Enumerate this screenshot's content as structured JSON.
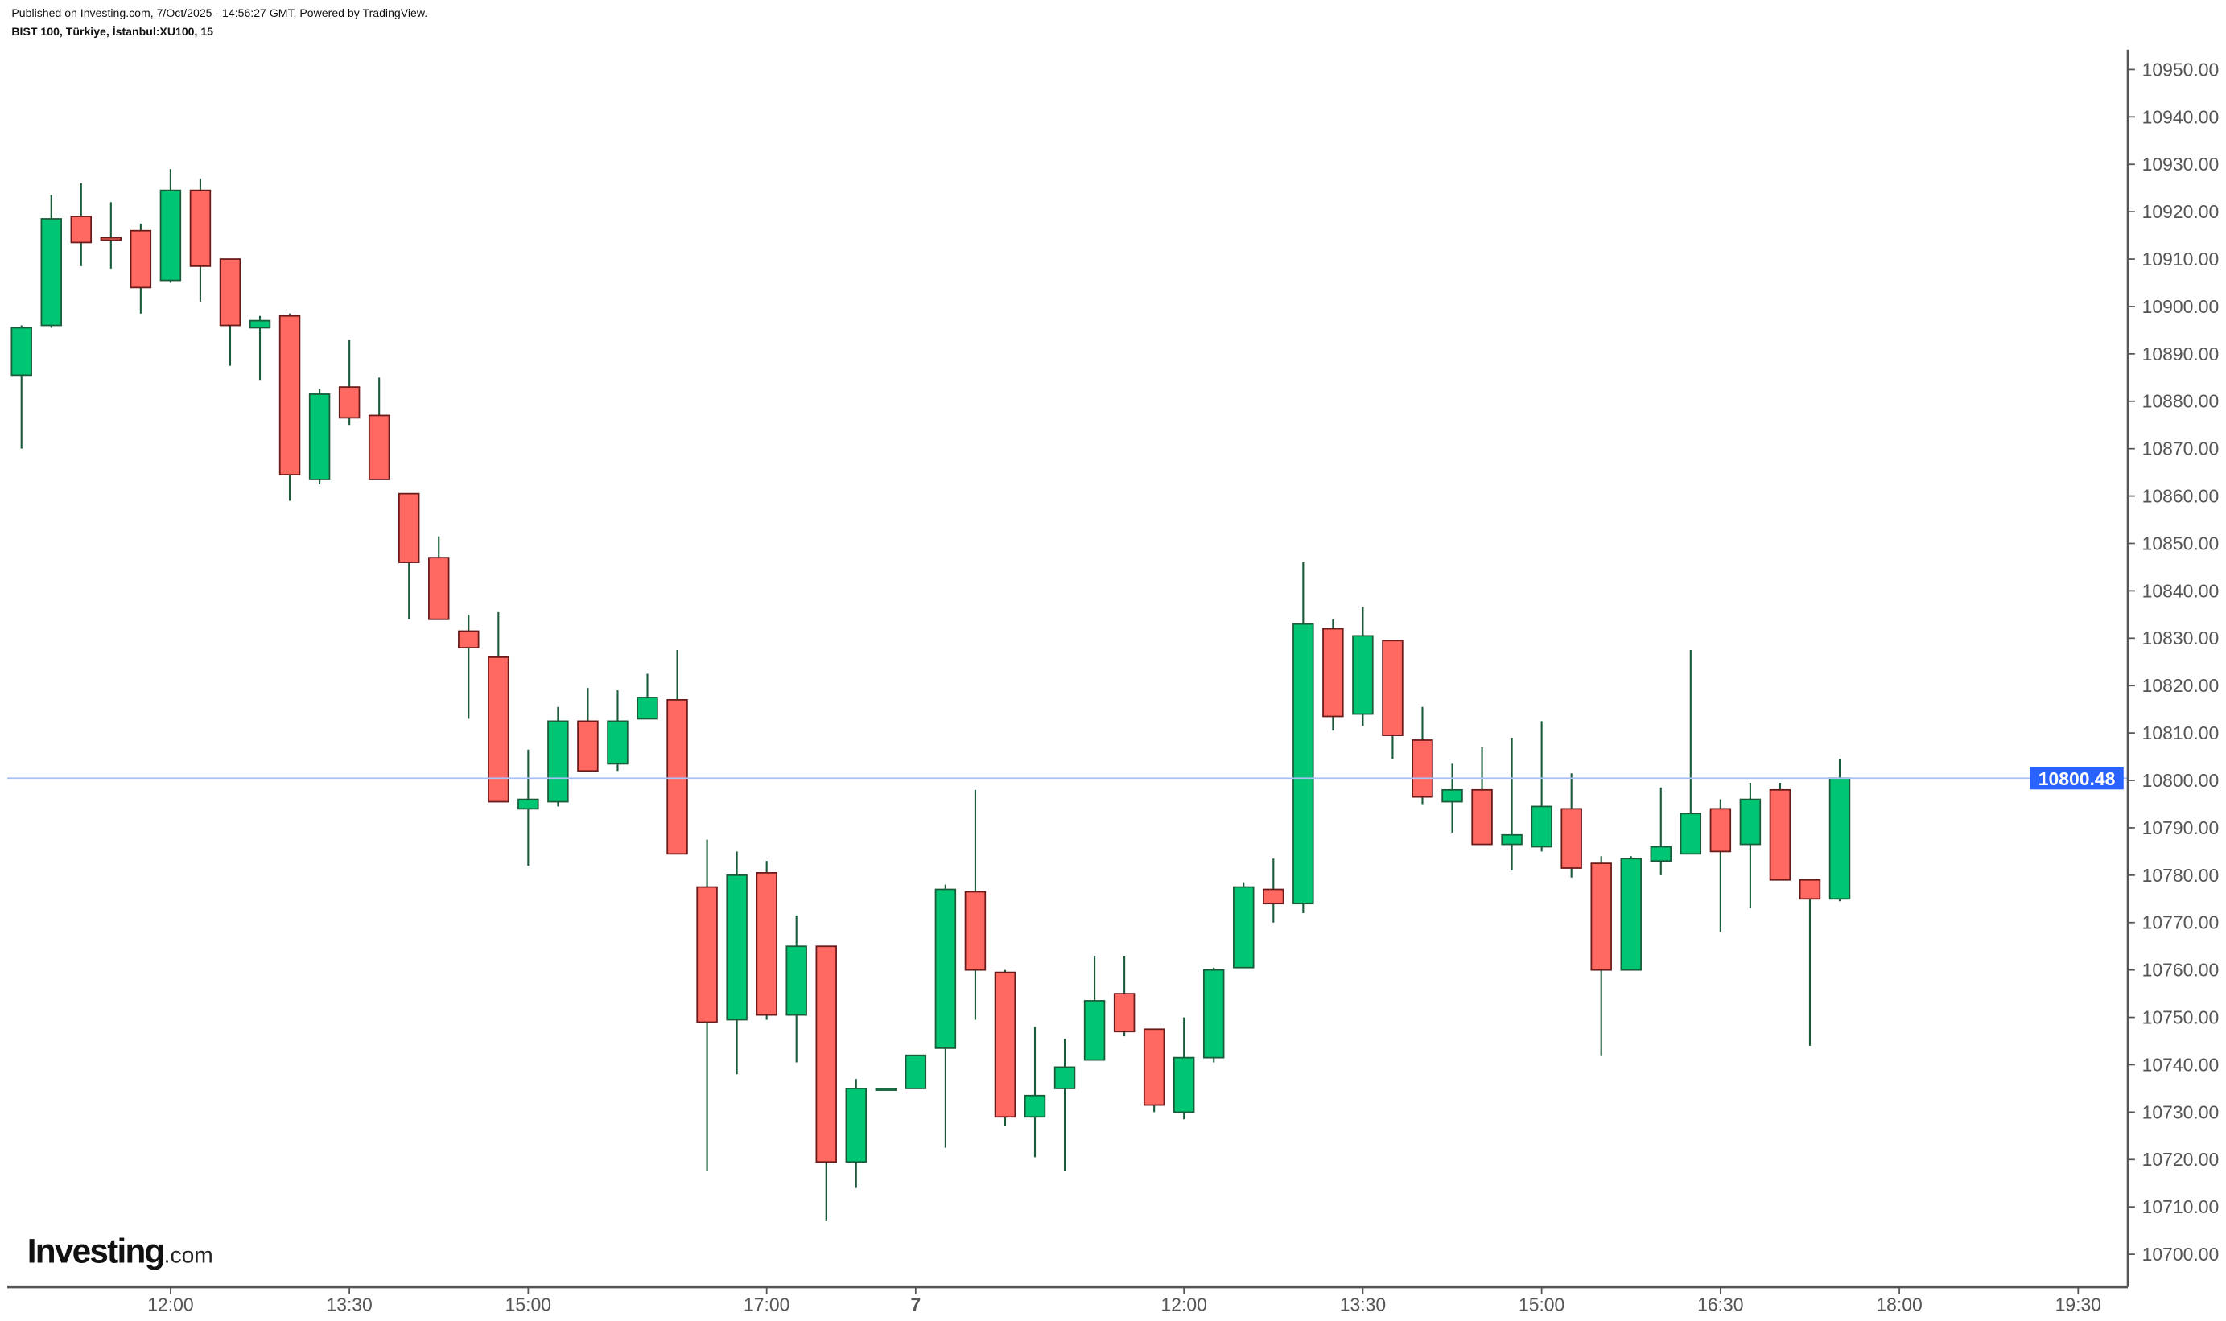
{
  "header": {
    "published": "Published on Investing.com, 7/Oct/2025 - 14:56:27 GMT, Powered by TradingView.",
    "symbol": "BIST 100, Türkiye, İstanbul:XU100, 15"
  },
  "logo": {
    "text": "Investing",
    "suffix": ".com"
  },
  "colors": {
    "up": "#00c572",
    "up_border": "#1a5c3a",
    "down": "#ff6961",
    "down_border": "#6b1a1a",
    "wick": "#1a5c3a",
    "price_line": "#a9c1f5",
    "price_label": "#2962ff"
  },
  "chart_data": {
    "type": "candlestick",
    "interval": "15",
    "ylim": [
      10695,
      10955
    ],
    "y_ticks": [
      "10700.00",
      "10710.00",
      "10720.00",
      "10730.00",
      "10740.00",
      "10750.00",
      "10760.00",
      "10770.00",
      "10780.00",
      "10790.00",
      "10800.00",
      "10810.00",
      "10820.00",
      "10830.00",
      "10840.00",
      "10850.00",
      "10860.00",
      "10870.00",
      "10880.00",
      "10890.00",
      "10900.00",
      "10910.00",
      "10920.00",
      "10930.00",
      "10940.00",
      "10950.00"
    ],
    "x_ticks": [
      {
        "label": "12:00",
        "bar": 5
      },
      {
        "label": "13:30",
        "bar": 11
      },
      {
        "label": "15:00",
        "bar": 17
      },
      {
        "label": "17:00",
        "bar": 25
      },
      {
        "label": "7",
        "bar": 30,
        "bold": true
      },
      {
        "label": "12:00",
        "bar": 39
      },
      {
        "label": "13:30",
        "bar": 45
      },
      {
        "label": "15:00",
        "bar": 51
      },
      {
        "label": "16:30",
        "bar": 57
      },
      {
        "label": "18:00",
        "bar": 63
      },
      {
        "label": "19:30",
        "bar": 69
      }
    ],
    "last_price": "10800.48",
    "ohlc": [
      [
        10885.5,
        10896,
        10870,
        10895.5
      ],
      [
        10896,
        10923.5,
        10895.5,
        10918.5
      ],
      [
        10919,
        10926,
        10908.5,
        10913.5
      ],
      [
        10914.5,
        10922,
        10908,
        10914
      ],
      [
        10916,
        10917.5,
        10898.5,
        10904
      ],
      [
        10905.5,
        10929,
        10905,
        10924.5
      ],
      [
        10924.5,
        10927,
        10901,
        10908.5
      ],
      [
        10910,
        10910,
        10887.5,
        10896
      ],
      [
        10895.5,
        10898,
        10884.5,
        10897
      ],
      [
        10898,
        10898.5,
        10859,
        10864.5
      ],
      [
        10863.5,
        10882.5,
        10862.5,
        10881.5
      ],
      [
        10883,
        10893,
        10875,
        10876.5
      ],
      [
        10877,
        10885,
        10863.5,
        10863.5
      ],
      [
        10860.5,
        10860.5,
        10834,
        10846
      ],
      [
        10847,
        10851.5,
        10834,
        10834
      ],
      [
        10831.5,
        10835,
        10813,
        10828
      ],
      [
        10826,
        10835.5,
        10795.5,
        10795.5
      ],
      [
        10794,
        10806.5,
        10782,
        10796
      ],
      [
        10795.5,
        10815.5,
        10794.5,
        10812.5
      ],
      [
        10812.5,
        10819.5,
        10802,
        10802
      ],
      [
        10803.5,
        10819,
        10802,
        10812.5
      ],
      [
        10813,
        10822.5,
        10813,
        10817.5
      ],
      [
        10817,
        10827.5,
        10784.5,
        10784.5
      ],
      [
        10777.5,
        10787.5,
        10717.5,
        10749
      ],
      [
        10749.5,
        10785,
        10738,
        10780
      ],
      [
        10780.5,
        10783,
        10749.5,
        10750.5
      ],
      [
        10750.5,
        10771.5,
        10740.5,
        10765
      ],
      [
        10765,
        10765,
        10707,
        10719.5
      ],
      [
        10719.5,
        10737,
        10714,
        10735
      ],
      [
        10734.8,
        10735,
        10734.8,
        10735
      ],
      [
        10735,
        10742,
        10735,
        10742
      ],
      [
        10743.5,
        10778,
        10722.5,
        10777
      ],
      [
        10776.5,
        10798,
        10749.5,
        10760
      ],
      [
        10759.5,
        10760,
        10727,
        10729
      ],
      [
        10729,
        10748,
        10720.5,
        10733.5
      ],
      [
        10735,
        10745.5,
        10717.5,
        10739.5
      ],
      [
        10741,
        10763,
        10741,
        10753.5
      ],
      [
        10755,
        10763,
        10746,
        10747
      ],
      [
        10747.5,
        10747.5,
        10730,
        10731.5
      ],
      [
        10730,
        10750,
        10728.5,
        10741.5
      ],
      [
        10741.5,
        10760.5,
        10740.5,
        10760
      ],
      [
        10760.5,
        10778.5,
        10760.5,
        10777.5
      ],
      [
        10777,
        10783.5,
        10770,
        10774
      ],
      [
        10774,
        10846,
        10772,
        10833
      ],
      [
        10832,
        10834,
        10810.5,
        10813.5
      ],
      [
        10814,
        10836.5,
        10811.5,
        10830.5
      ],
      [
        10829.5,
        10829.5,
        10804.5,
        10809.5
      ],
      [
        10808.5,
        10815.5,
        10795,
        10796.5
      ],
      [
        10795.5,
        10803.5,
        10789,
        10798
      ],
      [
        10798,
        10807,
        10786.5,
        10786.5
      ],
      [
        10786.5,
        10809,
        10781,
        10788.5
      ],
      [
        10786,
        10812.5,
        10785,
        10794.5
      ],
      [
        10794,
        10801.5,
        10779.5,
        10781.5
      ],
      [
        10782.5,
        10784,
        10742,
        10760
      ],
      [
        10760,
        10784,
        10760,
        10783.5
      ],
      [
        10783,
        10798.5,
        10780,
        10786
      ],
      [
        10784.5,
        10827.5,
        10784.5,
        10793
      ],
      [
        10794,
        10796,
        10768,
        10785
      ],
      [
        10786.5,
        10799.5,
        10773,
        10796
      ],
      [
        10798,
        10799.5,
        10779,
        10779
      ],
      [
        10779,
        10779,
        10744,
        10775
      ],
      [
        10775,
        10804.5,
        10774.5,
        10800.48
      ]
    ]
  }
}
